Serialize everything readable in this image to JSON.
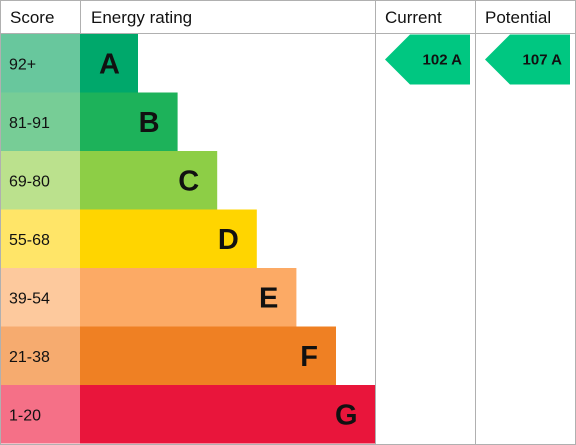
{
  "chart_data": {
    "type": "bar",
    "headers": {
      "score": "Score",
      "rating": "Energy rating",
      "current": "Current",
      "potential": "Potential"
    },
    "bands": [
      {
        "letter": "A",
        "range": "92+",
        "min": 92,
        "max": null,
        "color": "#00a86b",
        "score_bg": "#68c79d"
      },
      {
        "letter": "B",
        "range": "81-91",
        "min": 81,
        "max": 91,
        "color": "#1db25a",
        "score_bg": "#77cd96"
      },
      {
        "letter": "C",
        "range": "69-80",
        "min": 69,
        "max": 80,
        "color": "#8dce46",
        "score_bg": "#bbe18d"
      },
      {
        "letter": "D",
        "range": "55-68",
        "min": 55,
        "max": 68,
        "color": "#ffd500",
        "score_bg": "#ffe568"
      },
      {
        "letter": "E",
        "range": "39-54",
        "min": 39,
        "max": 54,
        "color": "#fcaa65",
        "score_bg": "#fdc99d"
      },
      {
        "letter": "F",
        "range": "21-38",
        "min": 21,
        "max": 38,
        "color": "#ef8023",
        "score_bg": "#f6ab6f"
      },
      {
        "letter": "G",
        "range": "1-20",
        "min": 1,
        "max": 20,
        "color": "#e9153b",
        "score_bg": "#f57087"
      }
    ],
    "current": {
      "value": 102,
      "band": "A",
      "label": "102 A",
      "color": "#00c781"
    },
    "potential": {
      "value": 107,
      "band": "A",
      "label": "107 A",
      "color": "#00c781"
    },
    "border_color": "#b0b0b0"
  }
}
